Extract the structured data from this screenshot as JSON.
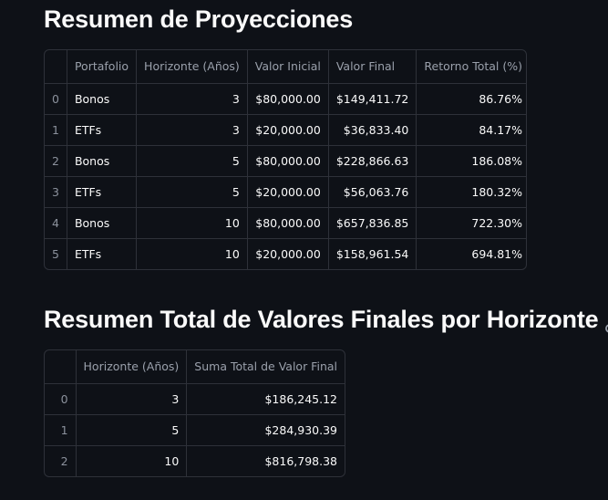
{
  "section1": {
    "title": "Resumen de Proyecciones",
    "columns": [
      "",
      "Portafolio",
      "Horizonte (Años)",
      "Valor Inicial",
      "Valor Final",
      "Retorno Total (%)"
    ],
    "rows": [
      {
        "index": "0",
        "portafolio": "Bonos",
        "horizonte": "3",
        "valor_inicial": "$80,000.00",
        "valor_final": "$149,411.72",
        "retorno": "86.76%"
      },
      {
        "index": "1",
        "portafolio": "ETFs",
        "horizonte": "3",
        "valor_inicial": "$20,000.00",
        "valor_final": "$36,833.40",
        "retorno": "84.17%"
      },
      {
        "index": "2",
        "portafolio": "Bonos",
        "horizonte": "5",
        "valor_inicial": "$80,000.00",
        "valor_final": "$228,866.63",
        "retorno": "186.08%"
      },
      {
        "index": "3",
        "portafolio": "ETFs",
        "horizonte": "5",
        "valor_inicial": "$20,000.00",
        "valor_final": "$56,063.76",
        "retorno": "180.32%"
      },
      {
        "index": "4",
        "portafolio": "Bonos",
        "horizonte": "10",
        "valor_inicial": "$80,000.00",
        "valor_final": "$657,836.85",
        "retorno": "722.30%"
      },
      {
        "index": "5",
        "portafolio": "ETFs",
        "horizonte": "10",
        "valor_inicial": "$20,000.00",
        "valor_final": "$158,961.54",
        "retorno": "694.81%"
      }
    ]
  },
  "section2": {
    "title": "Resumen Total de Valores Finales por Horizonte",
    "link_icon": "link-icon",
    "columns": [
      "",
      "Horizonte (Años)",
      "Suma Total de Valor Final"
    ],
    "rows": [
      {
        "index": "0",
        "horizonte": "3",
        "suma": "$186,245.12"
      },
      {
        "index": "1",
        "horizonte": "5",
        "suma": "$284,930.39"
      },
      {
        "index": "2",
        "horizonte": "10",
        "suma": "$816,798.38"
      }
    ]
  },
  "colors": {
    "background": "#0e1117",
    "border": "#2e3139",
    "text": "#fafafa",
    "header_text": "#9aa0ab"
  }
}
